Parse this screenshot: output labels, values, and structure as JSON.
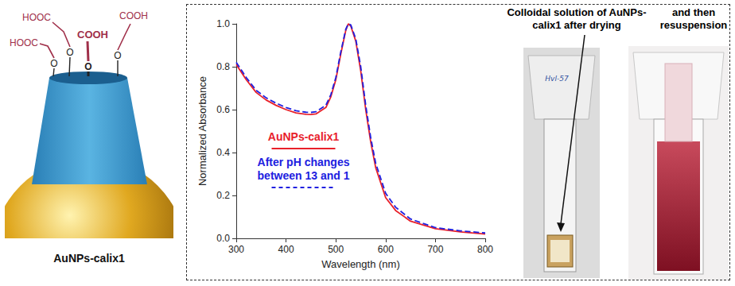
{
  "schematic": {
    "acid_groups": [
      "HOOC",
      "HOOC",
      "COOH",
      "COOH"
    ],
    "oxygens": [
      "O",
      "O",
      "O",
      "O"
    ],
    "caption": "AuNPs-calix1"
  },
  "chart_data": {
    "type": "line",
    "x_label": "Wavelength (nm)",
    "y_label": "Normalized Absorbance",
    "x": [
      300,
      320,
      340,
      360,
      380,
      400,
      420,
      440,
      450,
      460,
      480,
      490,
      500,
      510,
      520,
      525,
      530,
      540,
      550,
      560,
      570,
      580,
      600,
      620,
      650,
      700,
      750,
      800
    ],
    "series": [
      {
        "name": "AuNPs-calix1",
        "color": "#e8202a",
        "line_style": "solid",
        "values": [
          0.81,
          0.74,
          0.68,
          0.645,
          0.62,
          0.6,
          0.585,
          0.578,
          0.577,
          0.58,
          0.61,
          0.66,
          0.74,
          0.86,
          0.97,
          1.0,
          0.99,
          0.92,
          0.78,
          0.6,
          0.45,
          0.33,
          0.19,
          0.13,
          0.08,
          0.045,
          0.03,
          0.02
        ]
      },
      {
        "name": "After pH changes between 13 and 1",
        "color": "#2020e0",
        "line_style": "dashed",
        "values": [
          0.82,
          0.75,
          0.69,
          0.655,
          0.63,
          0.61,
          0.595,
          0.588,
          0.587,
          0.59,
          0.62,
          0.67,
          0.75,
          0.87,
          0.975,
          1.0,
          0.995,
          0.93,
          0.8,
          0.62,
          0.47,
          0.35,
          0.21,
          0.145,
          0.09,
          0.05,
          0.035,
          0.025
        ]
      }
    ],
    "xlim": [
      300,
      800
    ],
    "xticks": [
      300,
      400,
      500,
      600,
      700,
      800
    ],
    "ylim": [
      0,
      1
    ],
    "yticks": [
      {
        "value": 0,
        "label": "0.0"
      },
      {
        "value": 0.2,
        "label": "0.2"
      },
      {
        "value": 0.4,
        "label": "0.4"
      },
      {
        "value": 0.6,
        "label": "0.6"
      },
      {
        "value": 0.8,
        "label": "0.8"
      },
      {
        "value": 1,
        "label": "1.0"
      }
    ],
    "grid": false,
    "legend": "center left"
  },
  "photos": {
    "heading_left": "Colloidal solution of AuNPs-calix1 after drying",
    "heading_right": "and then resuspension",
    "cuvette_label": "Hvl-57"
  }
}
